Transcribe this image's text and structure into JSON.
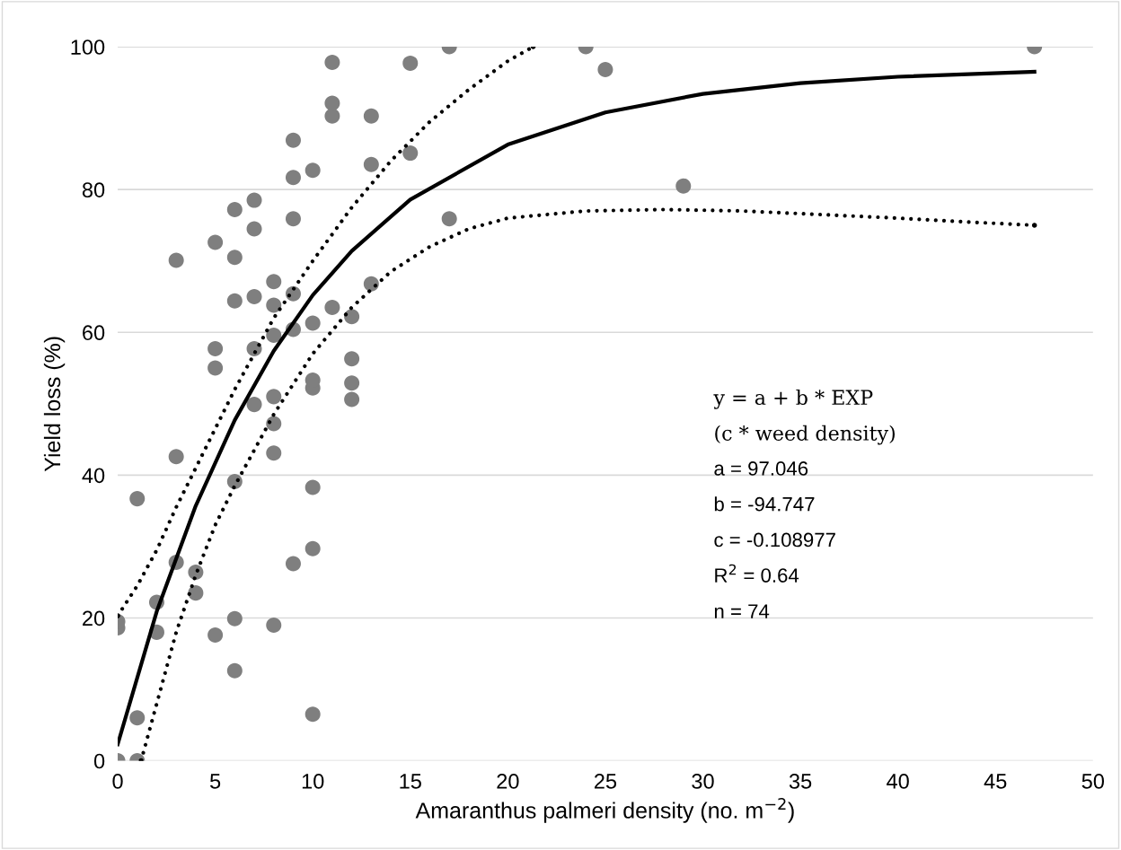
{
  "chart_data": {
    "type": "scatter",
    "xlabel": "Amaranthus palmeri density (no. m$^{−2}$)",
    "ylabel": "Yield loss (%)",
    "xlim": [
      0,
      50
    ],
    "xticks": [
      0,
      5,
      10,
      15,
      20,
      25,
      30,
      35,
      40,
      45,
      50
    ],
    "ylim": [
      0,
      100
    ],
    "yticks": [
      0,
      20,
      40,
      60,
      80,
      100
    ],
    "grid": "y",
    "legend": false,
    "series": [
      {
        "color": "#7f7f7f",
        "marker": "circle",
        "x": [
          0,
          0,
          0,
          1,
          1,
          1,
          2,
          2,
          3,
          3,
          3,
          4,
          4,
          5,
          5,
          5,
          5,
          6,
          6,
          6,
          6,
          6,
          6,
          7,
          7,
          7,
          7,
          7,
          8,
          8,
          8,
          8,
          8,
          8,
          8,
          9,
          9,
          9,
          9,
          9,
          9,
          10,
          10,
          10,
          10,
          10,
          10,
          10,
          11,
          11,
          11,
          11,
          12,
          12,
          12,
          12,
          13,
          13,
          13,
          15,
          15,
          17,
          17,
          24,
          25,
          29,
          47
        ],
        "values": [
          0,
          18.6,
          19.5,
          0,
          6.0,
          36.7,
          18.0,
          22.2,
          27.8,
          42.6,
          70.1,
          23.5,
          26.4,
          17.6,
          55.0,
          57.7,
          72.6,
          12.6,
          19.9,
          39.1,
          64.4,
          70.5,
          77.2,
          49.9,
          57.7,
          65.0,
          74.5,
          78.5,
          19.0,
          43.1,
          47.2,
          51.0,
          59.6,
          63.8,
          67.1,
          27.6,
          60.4,
          65.4,
          75.9,
          81.7,
          86.9,
          6.5,
          29.7,
          38.3,
          52.2,
          53.3,
          61.3,
          82.7,
          63.5,
          90.3,
          92.1,
          97.8,
          50.6,
          52.9,
          56.3,
          62.2,
          66.8,
          83.5,
          90.3,
          85.1,
          97.7,
          75.9,
          100,
          100,
          96.8,
          80.5,
          100
        ]
      },
      {
        "type": "line",
        "color": "#000000",
        "line_style": "solid",
        "marker": "none",
        "x": [
          0,
          2,
          4,
          6,
          8,
          10,
          12,
          15,
          20,
          25,
          30,
          35,
          40,
          47
        ],
        "values": [
          2.3,
          20.9,
          35.7,
          47.7,
          57.4,
          65.2,
          71.4,
          78.6,
          86.3,
          90.8,
          93.4,
          94.9,
          95.8,
          96.5
        ]
      },
      {
        "type": "line",
        "color": "#000000",
        "line_style": "dotted",
        "marker": "none",
        "x": [
          0,
          1,
          2,
          3,
          4,
          6,
          8,
          10,
          12,
          14,
          16,
          18,
          20,
          21.3
        ],
        "values": [
          20.3,
          24.5,
          29.5,
          35.5,
          41,
          52,
          62,
          70,
          77.5,
          84,
          89.5,
          94,
          98,
          100
        ]
      },
      {
        "type": "line",
        "color": "#000000",
        "line_style": "dotted",
        "marker": "none",
        "x": [
          1.2,
          2,
          3,
          4,
          5,
          6,
          8,
          10,
          12,
          14,
          16,
          18,
          20,
          24,
          28,
          32,
          36,
          40,
          44,
          47
        ],
        "values": [
          0,
          8,
          18,
          26,
          33,
          38.5,
          48.5,
          57,
          63.5,
          68.5,
          72,
          74.5,
          76,
          77,
          77.2,
          77,
          76.5,
          76,
          75.4,
          75
        ]
      }
    ],
    "annotations": [
      "y = a + b * EXP",
      "(c * weed density)",
      "a = 97.046",
      "b = -94.747",
      "c = -0.108977",
      "R$^{2}$ = 0.64",
      "n = 74"
    ]
  }
}
